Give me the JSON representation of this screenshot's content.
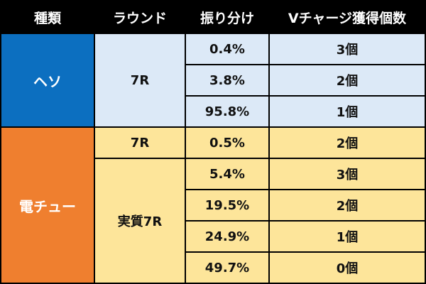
{
  "headers": [
    "種類",
    "ラウンド",
    "振り分け",
    "Vチャージ獲得個数"
  ],
  "colors": {
    "heso_category": "#0c6fc0",
    "heso_rows": "#dce9f7",
    "denchu_category": "#ef7f2f",
    "denchu_rows": "#fde59a"
  },
  "groups": [
    {
      "category": "ヘソ",
      "rows": [
        {
          "round": "7R",
          "share": "0.4%",
          "vcharge": "3個"
        },
        {
          "round": "",
          "share": "3.8%",
          "vcharge": "2個"
        },
        {
          "round": "",
          "share": "95.8%",
          "vcharge": "1個"
        }
      ]
    },
    {
      "category": "電チュー",
      "rows": [
        {
          "round": "7R",
          "share": "0.5%",
          "vcharge": "2個"
        },
        {
          "round": "実質7R",
          "share": "5.4%",
          "vcharge": "3個"
        },
        {
          "round": "",
          "share": "19.5%",
          "vcharge": "2個"
        },
        {
          "round": "",
          "share": "24.9%",
          "vcharge": "1個"
        },
        {
          "round": "",
          "share": "49.7%",
          "vcharge": "0個"
        }
      ]
    }
  ]
}
